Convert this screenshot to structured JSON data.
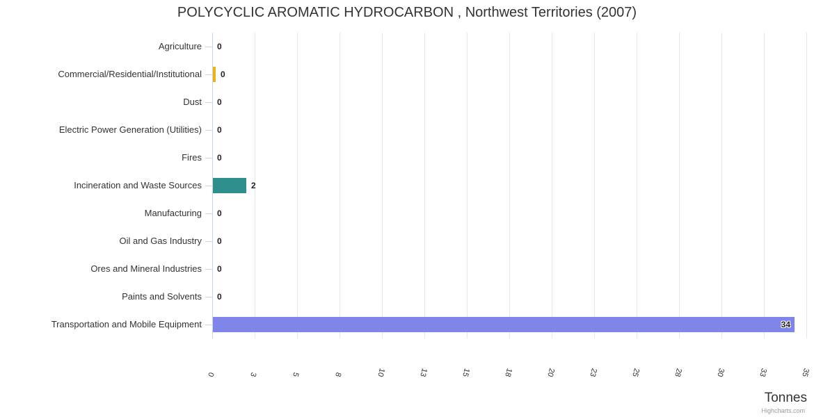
{
  "credits_label": "Highcharts.com",
  "chart_data": {
    "type": "bar",
    "orientation": "horizontal",
    "title": "POLYCYCLIC AROMATIC HYDROCARBON , Northwest Territories (2007)",
    "xlabel": "Tonnes",
    "ylabel": "",
    "legend": false,
    "grid": true,
    "xlim": [
      0,
      35
    ],
    "x_ticks": [
      "0",
      "3",
      "5",
      "8",
      "10",
      "13",
      "15",
      "18",
      "20",
      "23",
      "25",
      "28",
      "30",
      "33",
      "35"
    ],
    "categories": [
      "Agriculture",
      "Commercial/Residential/Institutional",
      "Dust",
      "Electric Power Generation (Utilities)",
      "Fires",
      "Incineration and Waste Sources",
      "Manufacturing",
      "Oil and Gas Industry",
      "Ores and Mineral Industries",
      "Paints and Solvents",
      "Transportation and Mobile Equipment"
    ],
    "values": [
      0,
      0,
      0,
      0,
      0,
      2,
      0,
      0,
      0,
      0,
      34
    ],
    "value_labels": [
      "0",
      "0",
      "0",
      "0",
      "0",
      "2",
      "0",
      "0",
      "0",
      "0",
      "34"
    ],
    "bar_lengths": [
      0,
      0.2,
      0,
      0,
      0,
      2,
      0,
      0,
      0,
      0,
      34.3
    ],
    "bar_colors": [
      null,
      "#eeb211",
      null,
      null,
      null,
      "#2e8f8c",
      null,
      null,
      null,
      null,
      "#8085e9"
    ],
    "axis_color": "#ccd6eb",
    "grid_color": "#e6e6e6"
  }
}
